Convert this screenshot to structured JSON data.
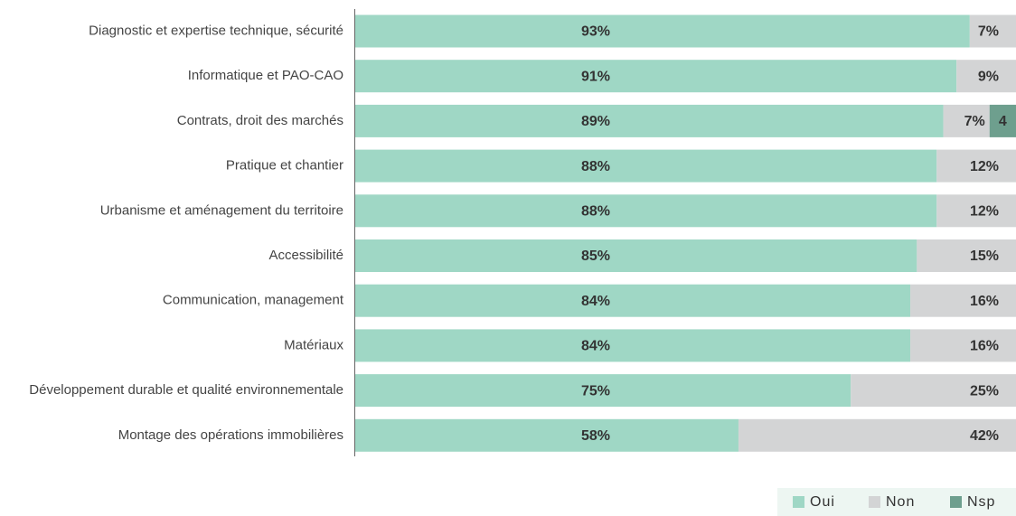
{
  "chart_data": {
    "type": "stacked-bar-horizontal",
    "categories": [
      "Diagnostic et expertise technique, sécurité",
      "Informatique et PAO-CAO",
      "Contrats, droit des marchés",
      "Pratique et chantier",
      "Urbanisme et aménagement du territoire",
      "Accessibilité",
      "Communication, management",
      "Matériaux",
      "Développement durable et qualité environnementale",
      "Montage des opérations immobilières"
    ],
    "xlim": [
      0,
      100
    ],
    "legend": "bottom-right",
    "series": [
      {
        "name": "Oui",
        "color": "#9fd7c5",
        "values": [
          93,
          91,
          89,
          88,
          88,
          85,
          84,
          84,
          75,
          58
        ],
        "value_labels": [
          "93%",
          "91%",
          "89%",
          "88%",
          "88%",
          "85%",
          "84%",
          "84%",
          "75%",
          "58%"
        ]
      },
      {
        "name": "Non",
        "color": "#d3d4d5",
        "values": [
          7,
          9,
          7,
          12,
          12,
          15,
          16,
          16,
          25,
          42
        ],
        "value_labels": [
          "7%",
          "9%",
          "7%",
          "12%",
          "12%",
          "15%",
          "16%",
          "16%",
          "25%",
          "42%"
        ]
      },
      {
        "name": "Nsp",
        "color": "#6e9f8e",
        "values": [
          null,
          null,
          4,
          null,
          null,
          null,
          null,
          null,
          null,
          null
        ]
      }
    ]
  }
}
